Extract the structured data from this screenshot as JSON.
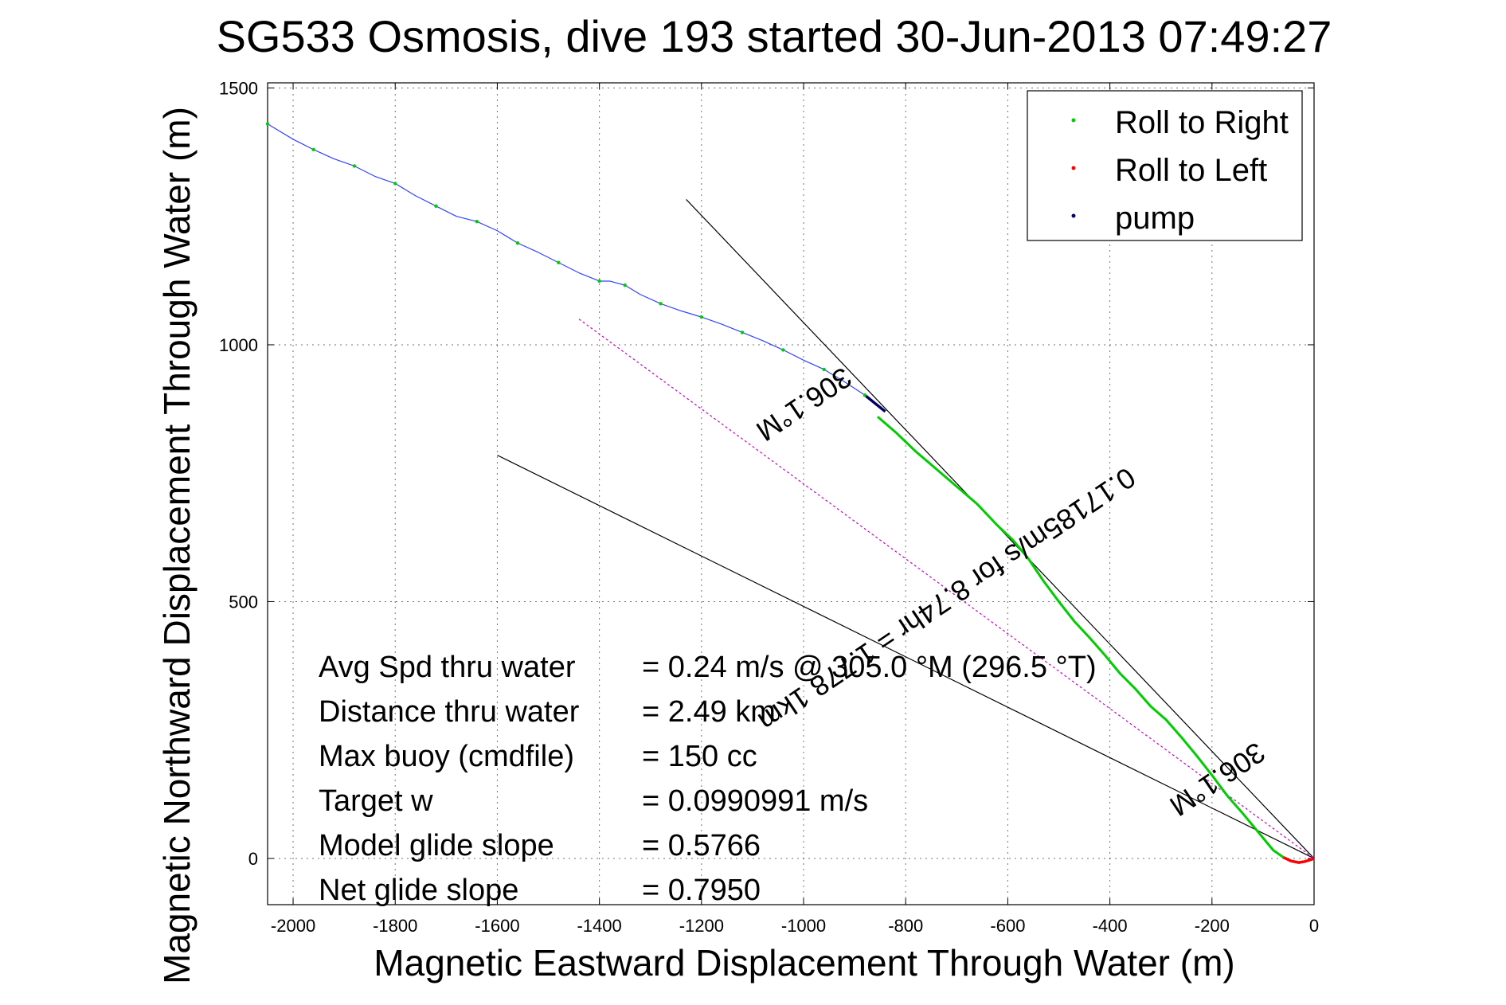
{
  "chart_data": {
    "type": "line",
    "title": "SG533 Osmosis, dive 193 started 30-Jun-2013 07:49:27",
    "xlabel": "Magnetic Eastward Displacement Through Water (m)",
    "ylabel": "Magnetic Northward Displacement Through Water (m)",
    "xlim": [
      -2050,
      0
    ],
    "ylim": [
      -90,
      1510
    ],
    "grid": true,
    "x_ticks": [
      -2000,
      -1800,
      -1600,
      -1400,
      -1200,
      -1000,
      -800,
      -600,
      -400,
      -200,
      0
    ],
    "y_ticks": [
      0,
      500,
      1000,
      1500
    ],
    "x_tick_labels": [
      "-2000",
      "-1800",
      "-1600",
      "-1400",
      "-1200",
      "-1000",
      "-800",
      "-600",
      "-400",
      "-200",
      "0"
    ],
    "y_tick_labels": [
      "0",
      "500",
      "1000",
      "1500"
    ],
    "legend": {
      "placement": "top-right",
      "entries": [
        {
          "label": "Roll to Right",
          "color": "#00cc00"
        },
        {
          "label": "Roll to Left",
          "color": "#ff0000"
        },
        {
          "label": "pump",
          "color": "#000066"
        }
      ]
    },
    "series": [
      {
        "role": "track",
        "color": "#3344ff",
        "x": [
          -2050,
          -2000,
          -1960,
          -1920,
          -1880,
          -1840,
          -1800,
          -1760,
          -1720,
          -1680,
          -1640,
          -1600,
          -1560,
          -1520,
          -1480,
          -1440,
          -1400,
          -1380,
          -1350,
          -1320,
          -1280,
          -1240,
          -1200,
          -1160,
          -1120,
          -1080,
          -1040,
          -1000,
          -960,
          -920,
          -880,
          -855
        ],
        "y": [
          1430,
          1400,
          1380,
          1362,
          1348,
          1328,
          1314,
          1290,
          1270,
          1250,
          1240,
          1222,
          1198,
          1180,
          1160,
          1140,
          1124,
          1124,
          1116,
          1098,
          1080,
          1066,
          1054,
          1040,
          1024,
          1008,
          990,
          970,
          952,
          928,
          902,
          882
        ]
      },
      {
        "name": "Roll to Right",
        "color": "#00cc00",
        "x": [
          -855,
          -820,
          -780,
          -740,
          -700,
          -660,
          -620,
          -590,
          -560,
          -530,
          -500,
          -470,
          -440,
          -410,
          -380,
          -350,
          -320,
          -290,
          -260,
          -230,
          -200,
          -170,
          -140,
          -110,
          -80,
          -60
        ],
        "y": [
          860,
          830,
          792,
          758,
          724,
          690,
          648,
          620,
          584,
          540,
          500,
          462,
          430,
          396,
          360,
          330,
          296,
          270,
          236,
          200,
          162,
          122,
          88,
          52,
          16,
          2
        ]
      },
      {
        "name": "Roll to Left",
        "color": "#ff0000",
        "x": [
          -60,
          -45,
          -30,
          -18,
          -8,
          0
        ],
        "y": [
          2,
          -5,
          -8,
          -6,
          -3,
          0
        ]
      },
      {
        "name": "pump",
        "color": "#000066",
        "x": [
          -880,
          -855,
          -840
        ],
        "y": [
          902,
          882,
          870
        ]
      }
    ],
    "reference_lines": [
      {
        "x": [
          -1230,
          0
        ],
        "y": [
          1283,
          0
        ],
        "color": "#000000"
      },
      {
        "x": [
          -1600,
          0
        ],
        "y": [
          785,
          0
        ],
        "color": "#000000"
      },
      {
        "x": [
          -1440,
          0
        ],
        "y": [
          1050,
          0
        ],
        "color": "#cc00cc",
        "dashed": true
      }
    ],
    "annotations": [
      {
        "text": "306.1°M",
        "x": -1010,
        "y": 900,
        "rotation": 146
      },
      {
        "text": "0.17185m/s for 8.74hr = 1.778 1km",
        "x": -730,
        "y": 520,
        "rotation": 146
      },
      {
        "text": "306.1°M",
        "x": -200,
        "y": 170,
        "rotation": 146
      }
    ]
  },
  "stats": {
    "rows": [
      {
        "label": "Avg Spd thru water",
        "value": "=  0.24 m/s @ 305.0 °M (296.5 °T)"
      },
      {
        "label": "Distance thru water",
        "value": "=  2.49 km"
      },
      {
        "label": "Max buoy (cmdfile)",
        "value": "= 150 cc"
      },
      {
        "label": "Target w",
        "value": "= 0.0990991 m/s"
      },
      {
        "label": "Model glide slope",
        "value": "= 0.5766"
      },
      {
        "label": "Net glide slope",
        "value": "= 0.7950"
      }
    ]
  }
}
